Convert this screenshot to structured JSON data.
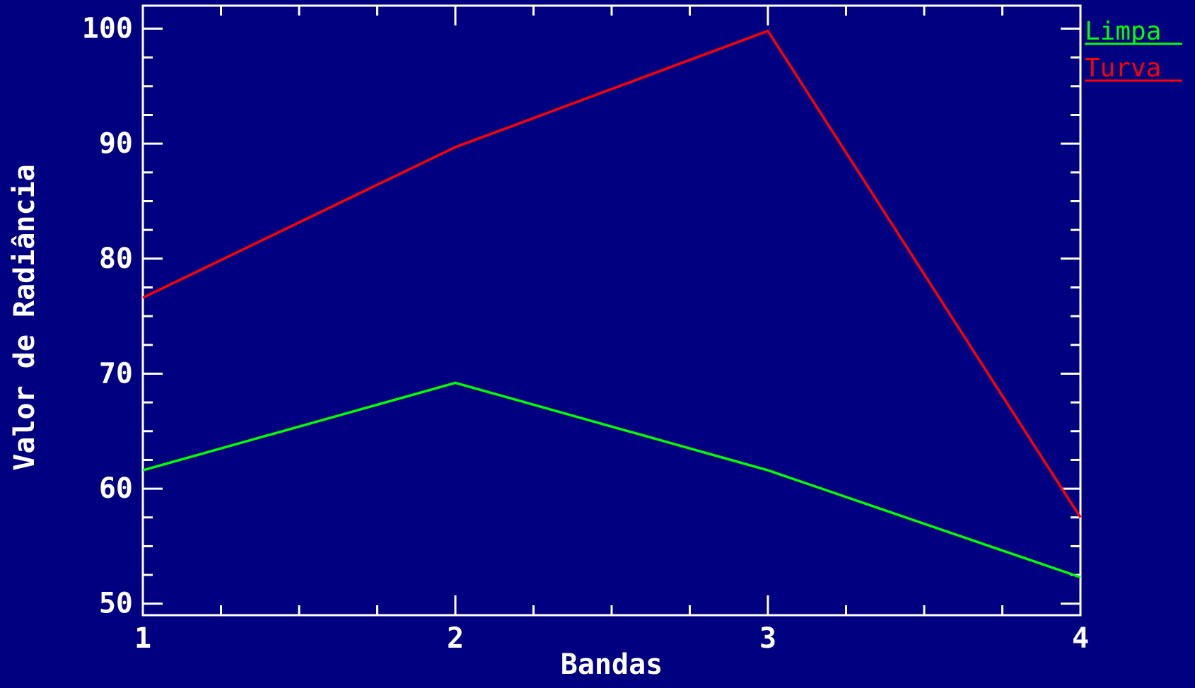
{
  "chart_data": {
    "type": "line",
    "x": [
      1,
      2,
      3,
      4
    ],
    "series": [
      {
        "name": "Limpa",
        "values": [
          61.6,
          69.2,
          61.6,
          52.3
        ],
        "color": "#00ff00"
      },
      {
        "name": "Turva",
        "values": [
          76.6,
          89.7,
          99.8,
          57.5
        ],
        "color": "#ff0000"
      }
    ],
    "xlabel": "Bandas",
    "ylabel": "Valor de Radiância",
    "xlim": [
      1,
      4
    ],
    "ylim": [
      49,
      102
    ],
    "xticks": [
      1,
      2,
      3,
      4
    ],
    "yticks": [
      50,
      60,
      70,
      80,
      90,
      100
    ],
    "legend_position": "top-right",
    "grid": false,
    "background_color": "#000080",
    "axis_color": "#ffffff"
  }
}
